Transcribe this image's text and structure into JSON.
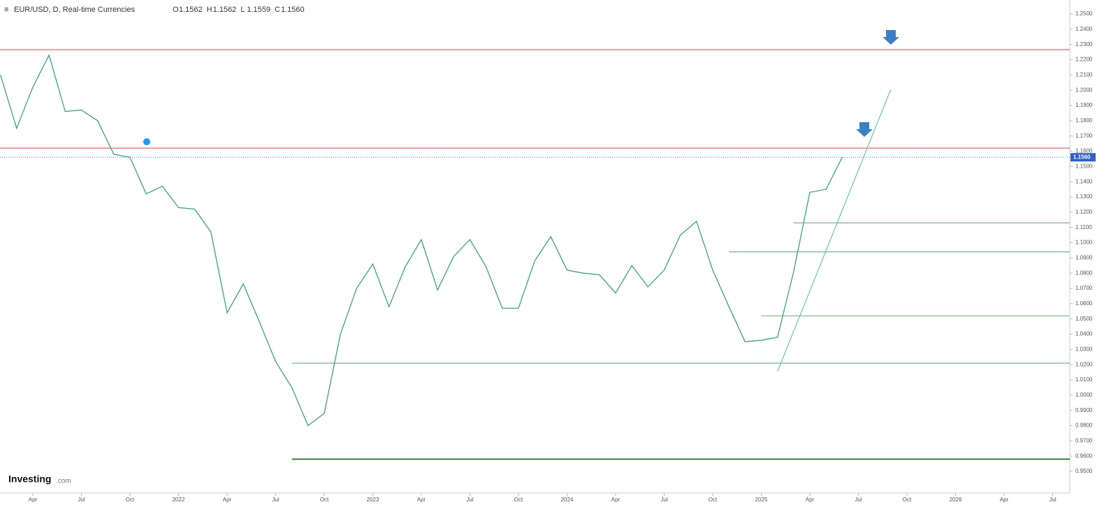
{
  "chart_data": {
    "type": "line",
    "title": "EUR/USD, D, Real-time Currencies",
    "ohlc": [
      {
        "key": "O",
        "value": "1.1562"
      },
      {
        "key": "H",
        "value": "1.1562"
      },
      {
        "key": "L",
        "value": "1.1559"
      },
      {
        "key": "C",
        "value": "1.1560"
      }
    ],
    "last_price": {
      "value": 1.156,
      "label": "1.1560"
    },
    "color": "#3aa17e",
    "x": [
      "2021-02",
      "2021-03",
      "2021-04",
      "2021-05",
      "2021-06",
      "2021-07",
      "2021-08",
      "2021-09",
      "2021-10",
      "2021-11",
      "2021-12",
      "2022-01",
      "2022-02",
      "2022-03",
      "2022-04",
      "2022-05",
      "2022-06",
      "2022-07",
      "2022-08",
      "2022-09",
      "2022-10",
      "2022-11",
      "2022-12",
      "2023-01",
      "2023-02",
      "2023-03",
      "2023-04",
      "2023-05",
      "2023-06",
      "2023-07",
      "2023-08",
      "2023-09",
      "2023-10",
      "2023-11",
      "2023-12",
      "2024-01",
      "2024-02",
      "2024-03",
      "2024-04",
      "2024-05",
      "2024-06",
      "2024-07",
      "2024-08",
      "2024-09",
      "2024-10",
      "2024-11",
      "2024-12",
      "2025-01",
      "2025-02",
      "2025-03",
      "2025-04",
      "2025-05",
      "2025-06"
    ],
    "values": [
      1.21,
      1.175,
      1.202,
      1.223,
      1.186,
      1.187,
      1.18,
      1.158,
      1.156,
      1.132,
      1.137,
      1.123,
      1.122,
      1.107,
      1.054,
      1.073,
      1.048,
      1.022,
      1.005,
      0.98,
      0.988,
      1.04,
      1.07,
      1.086,
      1.058,
      1.084,
      1.102,
      1.069,
      1.091,
      1.102,
      1.084,
      1.057,
      1.057,
      1.088,
      1.104,
      1.082,
      1.08,
      1.079,
      1.067,
      1.085,
      1.071,
      1.082,
      1.105,
      1.114,
      1.082,
      1.058,
      1.035,
      1.036,
      1.038,
      1.081,
      1.133,
      1.135,
      1.156
    ],
    "levels": [
      {
        "value": 1.2266,
        "color": "#e06666"
      },
      {
        "value": 1.162,
        "color": "#e06666"
      },
      {
        "value": 1.113,
        "color": "#7fb27f",
        "from": "2025-03"
      },
      {
        "value": 1.094,
        "color": "#7fb27f",
        "from": "2024-11"
      },
      {
        "value": 1.052,
        "color": "#7fb27f",
        "from": "2025-01"
      },
      {
        "value": 1.021,
        "color": "#7fb27f",
        "from": "2022-08"
      },
      {
        "value": 0.958,
        "color": "#3d7a3d",
        "from": "2022-08"
      }
    ],
    "trendline": {
      "x": [
        "2025-02",
        "2025-09"
      ],
      "values": [
        1.0155,
        1.2005
      ],
      "color": "#5fc9a6"
    },
    "ylim": [
      0.95,
      1.25
    ],
    "yticks": [
      {
        "value": 0.95,
        "label": "0.9500"
      },
      {
        "value": 0.96,
        "label": "0.9600"
      },
      {
        "value": 0.97,
        "label": "0.9700"
      },
      {
        "value": 0.98,
        "label": "0.9800"
      },
      {
        "value": 0.99,
        "label": "0.9900"
      },
      {
        "value": 1.0,
        "label": "1.0000"
      },
      {
        "value": 1.01,
        "label": "1.0100"
      },
      {
        "value": 1.02,
        "label": "1.0200"
      },
      {
        "value": 1.03,
        "label": "1.0300"
      },
      {
        "value": 1.04,
        "label": "1.0400"
      },
      {
        "value": 1.05,
        "label": "1.0500"
      },
      {
        "value": 1.06,
        "label": "1.0600"
      },
      {
        "value": 1.07,
        "label": "1.0700"
      },
      {
        "value": 1.08,
        "label": "1.0800"
      },
      {
        "value": 1.09,
        "label": "1.0900"
      },
      {
        "value": 1.1,
        "label": "1.1000"
      },
      {
        "value": 1.11,
        "label": "1.1100"
      },
      {
        "value": 1.12,
        "label": "1.1200"
      },
      {
        "value": 1.13,
        "label": "1.1300"
      },
      {
        "value": 1.14,
        "label": "1.1400"
      },
      {
        "value": 1.15,
        "label": "1.1500"
      },
      {
        "value": 1.16,
        "label": "1.1600"
      },
      {
        "value": 1.17,
        "label": "1.1700"
      },
      {
        "value": 1.18,
        "label": "1.1800"
      },
      {
        "value": 1.19,
        "label": "1.1900"
      },
      {
        "value": 1.2,
        "label": "1.2000"
      },
      {
        "value": 1.21,
        "label": "1.2100"
      },
      {
        "value": 1.22,
        "label": "1.2200"
      },
      {
        "value": 1.23,
        "label": "1.2300"
      },
      {
        "value": 1.24,
        "label": "1.2400"
      },
      {
        "value": 1.25,
        "label": "1.2500"
      }
    ],
    "xticks": [
      {
        "value": "2021-04",
        "label": "Apr"
      },
      {
        "value": "2021-07",
        "label": "Jul"
      },
      {
        "value": "2021-10",
        "label": "Oct"
      },
      {
        "value": "2022-01",
        "label": "2022"
      },
      {
        "value": "2022-04",
        "label": "Apr"
      },
      {
        "value": "2022-07",
        "label": "Jul"
      },
      {
        "value": "2022-10",
        "label": "Oct"
      },
      {
        "value": "2023-01",
        "label": "2023"
      },
      {
        "value": "2023-04",
        "label": "Apr"
      },
      {
        "value": "2023-07",
        "label": "Jul"
      },
      {
        "value": "2023-10",
        "label": "Oct"
      },
      {
        "value": "2024-01",
        "label": "2024"
      },
      {
        "value": "2024-04",
        "label": "Apr"
      },
      {
        "value": "2024-07",
        "label": "Jul"
      },
      {
        "value": "2024-10",
        "label": "Oct"
      },
      {
        "value": "2025-01",
        "label": "2025"
      },
      {
        "value": "2025-04",
        "label": "Apr"
      },
      {
        "value": "2025-07",
        "label": "Jul"
      },
      {
        "value": "2025-10",
        "label": "Oct"
      },
      {
        "value": "2026-01",
        "label": "2026"
      },
      {
        "value": "2026-04",
        "label": "Apr"
      },
      {
        "value": "2026-07",
        "label": "Jul"
      }
    ],
    "logo": {
      "brand": "Investing",
      "suffix": ".com"
    }
  }
}
